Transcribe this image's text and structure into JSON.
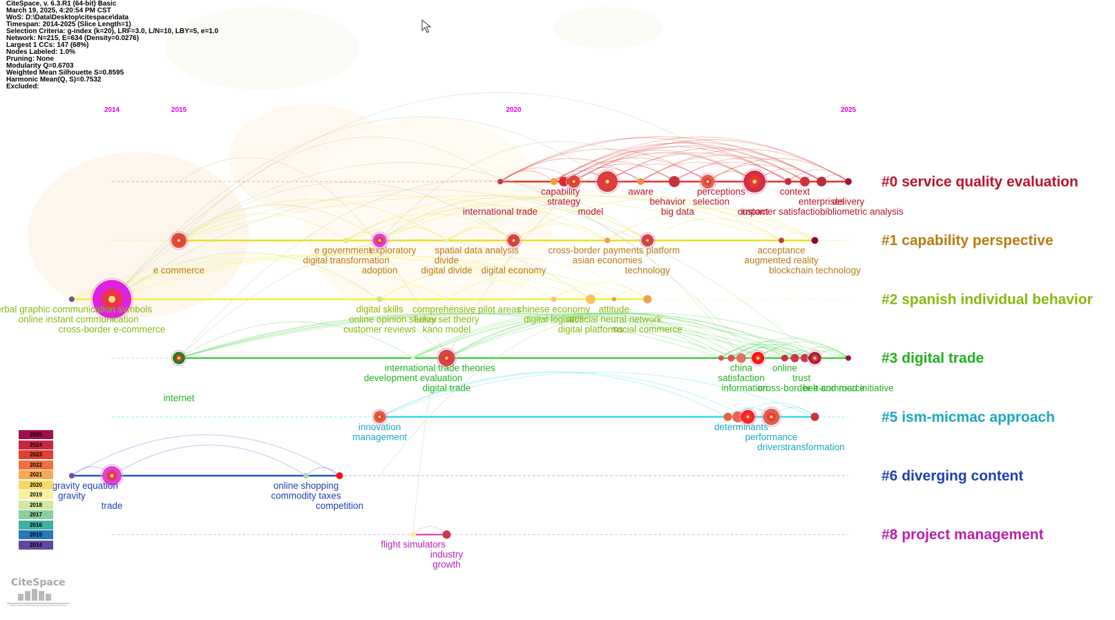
{
  "info_lines": [
    "CiteSpace, v. 6.3.R1 (64-bit) Basic",
    "March 19, 2025, 4:20:54 PM CST",
    "WoS: D:\\Data\\Desktop\\citespace\\data",
    "Timespan: 2014-2025 (Slice Length=1)",
    "Selection Criteria: g-index (k=20), LRF=3.0, L/N=10, LBY=5, e=1.0",
    "Network: N=215, E=634 (Density=0.0276)",
    "Largest 1 CCs: 147 (68%)",
    "Nodes Labeled: 1.0%",
    "Pruning: None",
    "Modularity Q=0.6703",
    "Weighted Mean Silhouette S=0.8595",
    "Harmonic Mean(Q, S)=0.7532",
    "Excluded:"
  ],
  "years": [
    "2014",
    "2015",
    "2020",
    "2025"
  ],
  "year_color": "#e000e0",
  "clusters": [
    {
      "label": "#0 service quality evaluation",
      "color": "#b8142a",
      "line_color": "#e0302c",
      "nodes": [
        {
          "year": 2019.8,
          "r": 4,
          "c": "#c83848"
        },
        {
          "year": 2020.6,
          "r": 5,
          "c": "#f0a020"
        },
        {
          "year": 2020.75,
          "r": 7,
          "c": "#e02830"
        },
        {
          "year": 2020.9,
          "r": 9,
          "c": "#d84838"
        },
        {
          "year": 2021.4,
          "r": 15,
          "c": "#d84040"
        },
        {
          "year": 2021.9,
          "r": 5,
          "c": "#f09040"
        },
        {
          "year": 2022.4,
          "r": 8,
          "c": "#c83040"
        },
        {
          "year": 2022.9,
          "r": 10,
          "c": "#e06050"
        },
        {
          "year": 2023.6,
          "r": 16,
          "c": "#d03040"
        },
        {
          "year": 2024.1,
          "r": 5,
          "c": "#c82838"
        },
        {
          "year": 2024.35,
          "r": 7,
          "c": "#d03040"
        },
        {
          "year": 2024.6,
          "r": 7,
          "c": "#c02840"
        },
        {
          "year": 2025,
          "r": 5,
          "c": "#a01040"
        }
      ],
      "labels": [
        {
          "t": "international trade",
          "year": 2019.8,
          "row": 2
        },
        {
          "t": "capability",
          "year": 2020.7,
          "row": 0
        },
        {
          "t": "strategy",
          "year": 2020.75,
          "row": 1
        },
        {
          "t": "model",
          "year": 2021.15,
          "row": 2
        },
        {
          "t": "aware",
          "year": 2021.9,
          "row": 0
        },
        {
          "t": "behavior",
          "year": 2022.3,
          "row": 1
        },
        {
          "t": "big data",
          "year": 2022.45,
          "row": 2
        },
        {
          "t": "perceptions",
          "year": 2023.1,
          "row": 0
        },
        {
          "t": "selection",
          "year": 2022.95,
          "row": 1
        },
        {
          "t": "impact",
          "year": 2023.6,
          "row": 2
        },
        {
          "t": "context",
          "year": 2024.2,
          "row": 0
        },
        {
          "t": "enterprises",
          "year": 2024.6,
          "row": 1
        },
        {
          "t": "customer satisfaction",
          "year": 2024.0,
          "row": 2
        },
        {
          "t": "delivery",
          "year": 2025.0,
          "row": 1
        },
        {
          "t": "bibliometric analysis",
          "year": 2025.2,
          "row": 2
        }
      ]
    },
    {
      "label": "#1 capability perspective",
      "color": "#b87a10",
      "line_color": "#e8e020",
      "nodes": [
        {
          "year": 2015,
          "r": 11,
          "c": "#d85040"
        },
        {
          "year": 2017.5,
          "r": 4,
          "c": "#d8e8a0"
        },
        {
          "year": 2018,
          "r": 10,
          "c": "#e040e0"
        },
        {
          "year": 2019,
          "r": 3,
          "c": "#f0f0c0"
        },
        {
          "year": 2020,
          "r": 9,
          "c": "#d04848"
        },
        {
          "year": 2021.4,
          "r": 4,
          "c": "#f09858"
        },
        {
          "year": 2022,
          "r": 9,
          "c": "#c84858"
        },
        {
          "year": 2024,
          "r": 4,
          "c": "#d03840"
        },
        {
          "year": 2024.5,
          "r": 5,
          "c": "#900838"
        }
      ],
      "labels": [
        {
          "t": "e commerce",
          "year": 2015,
          "row": 2
        },
        {
          "t": "e government",
          "year": 2017.45,
          "row": 0
        },
        {
          "t": "digital transformation",
          "year": 2017.5,
          "row": 1
        },
        {
          "t": "exploratory",
          "year": 2018.2,
          "row": 0
        },
        {
          "t": "adoption",
          "year": 2018,
          "row": 2
        },
        {
          "t": "spatial data analysis",
          "year": 2019.45,
          "row": 0
        },
        {
          "t": "divide",
          "year": 2019,
          "row": 1
        },
        {
          "t": "digital divide",
          "year": 2019,
          "row": 2
        },
        {
          "t": "digital economy",
          "year": 2020,
          "row": 2
        },
        {
          "t": "cross-border payments platform",
          "year": 2021.5,
          "row": 0
        },
        {
          "t": "asian economies",
          "year": 2021.4,
          "row": 1
        },
        {
          "t": "technology",
          "year": 2022,
          "row": 2
        },
        {
          "t": "acceptance",
          "year": 2024,
          "row": 0
        },
        {
          "t": "augmented reality",
          "year": 2024,
          "row": 1
        },
        {
          "t": "blockchain technology",
          "year": 2024.5,
          "row": 2
        }
      ]
    },
    {
      "label": "#2 spanish individual behavior",
      "color": "#88b810",
      "line_color": "#f0f040",
      "nodes": [
        {
          "year": 2013.4,
          "r": 4,
          "c": "#7050a0"
        },
        {
          "year": 2014,
          "r": 28,
          "c": "#e020e0"
        },
        {
          "year": 2018,
          "r": 4,
          "c": "#c8e0a0"
        },
        {
          "year": 2019,
          "r": 3,
          "c": "#f0f0c0"
        },
        {
          "year": 2020.6,
          "r": 4,
          "c": "#f8c088"
        },
        {
          "year": 2021.15,
          "r": 7,
          "c": "#f8c060"
        },
        {
          "year": 2021.5,
          "r": 3,
          "c": "#f09050"
        },
        {
          "year": 2022,
          "r": 6,
          "c": "#f0a050"
        }
      ],
      "labels": [
        {
          "t": "verbal graphic communication symbols",
          "year": 2013.4,
          "row": 0
        },
        {
          "t": "online instant communication",
          "year": 2013.5,
          "row": 1
        },
        {
          "t": "cross-border e-commerce",
          "year": 2014,
          "row": 2
        },
        {
          "t": "digital skills",
          "year": 2018,
          "row": 0
        },
        {
          "t": "comprehensive pilot areas",
          "year": 2019.3,
          "row": 0
        },
        {
          "t": "online opinion seeker",
          "year": 2018.2,
          "row": 1
        },
        {
          "t": "fuzzy set theory",
          "year": 2019,
          "row": 1
        },
        {
          "t": "customer reviews",
          "year": 2018,
          "row": 2
        },
        {
          "t": "kano model",
          "year": 2019,
          "row": 2
        },
        {
          "t": "chinese economy",
          "year": 2020.6,
          "row": 0
        },
        {
          "t": "attitude",
          "year": 2021.5,
          "row": 0
        },
        {
          "t": "digital logistics",
          "year": 2020.6,
          "row": 1
        },
        {
          "t": "artificial neural network",
          "year": 2021.5,
          "row": 1
        },
        {
          "t": "digital platforms",
          "year": 2021.15,
          "row": 2
        },
        {
          "t": "social commerce",
          "year": 2022,
          "row": 2
        }
      ]
    },
    {
      "label": "#3 digital trade",
      "color": "#20b020",
      "line_color": "#40d040",
      "nodes": [
        {
          "year": 2015,
          "r": 9,
          "c": "#208020"
        },
        {
          "year": 2018.5,
          "r": 3,
          "c": "#f0f0c0"
        },
        {
          "year": 2019,
          "r": 12,
          "c": "#d04848"
        },
        {
          "year": 2023.1,
          "r": 4,
          "c": "#e05050"
        },
        {
          "year": 2023.25,
          "r": 5,
          "c": "#e05050"
        },
        {
          "year": 2023.4,
          "r": 7,
          "c": "#e07060"
        },
        {
          "year": 2023.65,
          "r": 9,
          "c": "#ff1010"
        },
        {
          "year": 2024.05,
          "r": 5,
          "c": "#d03040"
        },
        {
          "year": 2024.2,
          "r": 6,
          "c": "#c83848"
        },
        {
          "year": 2024.35,
          "r": 6,
          "c": "#c83848"
        },
        {
          "year": 2024.5,
          "r": 9,
          "c": "#a02040"
        },
        {
          "year": 2025,
          "r": 4,
          "c": "#a01040"
        }
      ],
      "labels": [
        {
          "t": "internet",
          "year": 2015,
          "row": 3
        },
        {
          "t": "international trade theories",
          "year": 2018.9,
          "row": 0
        },
        {
          "t": "development evaluation",
          "year": 2018.5,
          "row": 1
        },
        {
          "t": "digital trade",
          "year": 2019,
          "row": 2
        },
        {
          "t": "china",
          "year": 2023.4,
          "row": 0
        },
        {
          "t": "satisfaction",
          "year": 2023.4,
          "row": 1
        },
        {
          "t": "information",
          "year": 2023.45,
          "row": 2
        },
        {
          "t": "online",
          "year": 2024.05,
          "row": 0
        },
        {
          "t": "trust",
          "year": 2024.3,
          "row": 1
        },
        {
          "t": "cross-border e-commerce",
          "year": 2024.45,
          "row": 2
        },
        {
          "t": "belt and road initiative",
          "year": 2025,
          "row": 2
        }
      ]
    },
    {
      "label": "#5 ism-micmac approach",
      "color": "#18a8c0",
      "line_color": "#30d8e8",
      "nodes": [
        {
          "year": 2018,
          "r": 9,
          "c": "#e06040"
        },
        {
          "year": 2023.2,
          "r": 6,
          "c": "#e86040"
        },
        {
          "year": 2023.35,
          "r": 8,
          "c": "#f06050"
        },
        {
          "year": 2023.5,
          "r": 10,
          "c": "#ff2020"
        },
        {
          "year": 2023.85,
          "r": 12,
          "c": "#e06050"
        },
        {
          "year": 2024.5,
          "r": 6,
          "c": "#d03040"
        }
      ],
      "labels": [
        {
          "t": "innovation",
          "year": 2018,
          "row": 0
        },
        {
          "t": "management",
          "year": 2018,
          "row": 1
        },
        {
          "t": "determinants",
          "year": 2023.4,
          "row": 0
        },
        {
          "t": "performance",
          "year": 2023.85,
          "row": 1
        },
        {
          "t": "drivers",
          "year": 2023.85,
          "row": 2
        },
        {
          "t": "transformation",
          "year": 2024.5,
          "row": 2
        }
      ]
    },
    {
      "label": "#6 diverging content",
      "color": "#2040b0",
      "line_color": "#2050d0",
      "nodes": [
        {
          "year": 2013.4,
          "r": 4,
          "c": "#7050a0"
        },
        {
          "year": 2014,
          "r": 14,
          "c": "#e040e0"
        },
        {
          "year": 2016.9,
          "r": 4,
          "c": "#a8d8a8"
        },
        {
          "year": 2017.4,
          "r": 5,
          "c": "#ff1010"
        }
      ],
      "labels": [
        {
          "t": "gravity equation",
          "year": 2013.6,
          "row": 0
        },
        {
          "t": "gravity",
          "year": 2013.4,
          "row": 1
        },
        {
          "t": "trade",
          "year": 2014,
          "row": 2
        },
        {
          "t": "online shopping",
          "year": 2016.9,
          "row": 0
        },
        {
          "t": "commodity taxes",
          "year": 2016.9,
          "row": 1
        },
        {
          "t": "competition",
          "year": 2017.4,
          "row": 2
        }
      ]
    },
    {
      "label": "#8 project management",
      "color": "#b820b0",
      "line_color": "#e050c0",
      "nodes": [
        {
          "year": 2018.5,
          "r": 4,
          "c": "#f0f0a0"
        },
        {
          "year": 2019,
          "r": 6,
          "c": "#c83848"
        }
      ],
      "labels": [
        {
          "t": "flight simulators",
          "year": 2018.5,
          "row": 0
        },
        {
          "t": "industry",
          "year": 2019,
          "row": 1
        },
        {
          "t": "growth",
          "year": 2019,
          "row": 2
        }
      ]
    }
  ],
  "legend": [
    {
      "year": "2025",
      "color": "#a0104a"
    },
    {
      "year": "2024",
      "color": "#c82840"
    },
    {
      "year": "2023",
      "color": "#e04030"
    },
    {
      "year": "2022",
      "color": "#f07040"
    },
    {
      "year": "2021",
      "color": "#f8a850"
    },
    {
      "year": "2020",
      "color": "#f8d868"
    },
    {
      "year": "2019",
      "color": "#f8f0a0"
    },
    {
      "year": "2018",
      "color": "#d0e8a0"
    },
    {
      "year": "2017",
      "color": "#88d0a0"
    },
    {
      "year": "2016",
      "color": "#40b0a0"
    },
    {
      "year": "2015",
      "color": "#2878b8"
    },
    {
      "year": "2014",
      "color": "#6048a0"
    }
  ],
  "logo_text": "CiteSpace"
}
